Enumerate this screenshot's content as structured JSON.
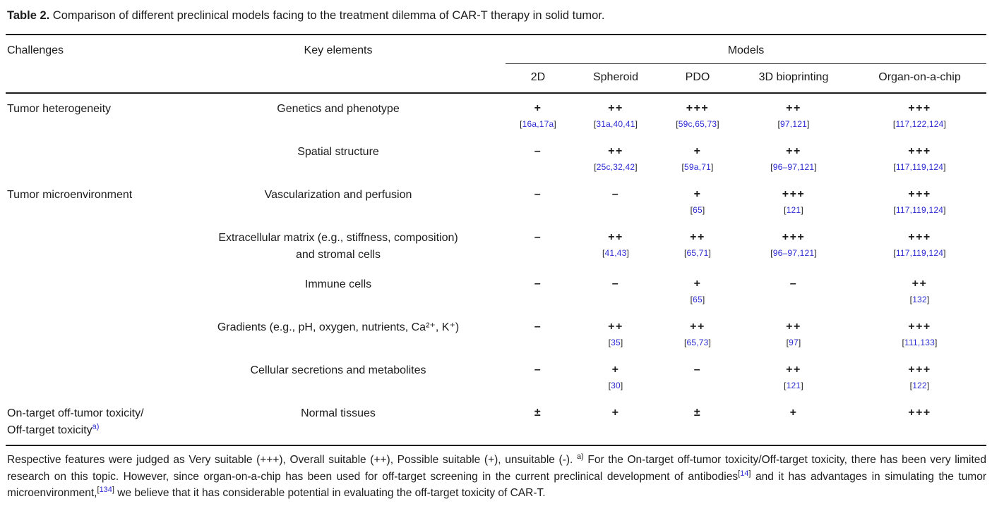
{
  "title": {
    "label": "Table 2.",
    "text": " Comparison of different preclinical models facing to the treatment dilemma of CAR-T therapy in solid tumor."
  },
  "colors": {
    "citation_blue": "#2b2bd2",
    "text_dark": "#1c1c1c"
  },
  "table": {
    "headers": {
      "challenges": "Challenges",
      "key_elements": "Key elements",
      "models": "Models",
      "model_columns": [
        "2D",
        "Spheroid",
        "PDO",
        "3D bioprinting",
        "Organ-on-a-chip"
      ]
    },
    "rows": [
      {
        "challenge": {
          "lines": [
            "Tumor heterogeneity"
          ]
        },
        "element": {
          "lines": [
            "Genetics and phenotype"
          ]
        },
        "cells": [
          {
            "symbol": "+",
            "cite": "[16a,17a]"
          },
          {
            "symbol": "++",
            "cite": "[31a,40,41]"
          },
          {
            "symbol": "+++",
            "cite": "[59c,65,73]"
          },
          {
            "symbol": "++",
            "cite": "[97,121]"
          },
          {
            "symbol": "+++",
            "cite": "[117,122,124]"
          }
        ]
      },
      {
        "challenge": {
          "lines": []
        },
        "element": {
          "lines": [
            "Spatial structure"
          ]
        },
        "cells": [
          {
            "symbol": "–"
          },
          {
            "symbol": "++",
            "cite": "[25c,32,42]"
          },
          {
            "symbol": "+",
            "cite": "[59a,71]"
          },
          {
            "symbol": "++",
            "cite": "[96–97,121]"
          },
          {
            "symbol": "+++",
            "cite": "[117,119,124]"
          }
        ]
      },
      {
        "challenge": {
          "lines": [
            "Tumor microenvironment"
          ]
        },
        "element": {
          "lines": [
            "Vascularization and perfusion"
          ]
        },
        "cells": [
          {
            "symbol": "–"
          },
          {
            "symbol": "–"
          },
          {
            "symbol": "+",
            "cite": "[65]"
          },
          {
            "symbol": "+++",
            "cite": "[121]"
          },
          {
            "symbol": "+++",
            "cite": "[117,119,124]"
          }
        ]
      },
      {
        "challenge": {
          "lines": []
        },
        "element": {
          "lines": [
            "Extracellular matrix (e.g., stiffness, composition)",
            "and stromal cells"
          ]
        },
        "cells": [
          {
            "symbol": "–"
          },
          {
            "symbol": "++",
            "cite": "[41,43]"
          },
          {
            "symbol": "++",
            "cite": "[65,71]"
          },
          {
            "symbol": "+++",
            "cite": "[96–97,121]"
          },
          {
            "symbol": "+++",
            "cite": "[117,119,124]"
          }
        ]
      },
      {
        "challenge": {
          "lines": []
        },
        "element": {
          "lines": [
            "Immune cells"
          ]
        },
        "cells": [
          {
            "symbol": "–"
          },
          {
            "symbol": "–"
          },
          {
            "symbol": "+",
            "cite": "[65]"
          },
          {
            "symbol": "–"
          },
          {
            "symbol": "++",
            "cite": "[132]"
          }
        ]
      },
      {
        "challenge": {
          "lines": []
        },
        "element": {
          "lines": [
            "Gradients (e.g., pH, oxygen, nutrients, Ca²⁺, K⁺)"
          ]
        },
        "cells": [
          {
            "symbol": "–"
          },
          {
            "symbol": "++",
            "cite": "[35]"
          },
          {
            "symbol": "++",
            "cite": "[65,73]"
          },
          {
            "symbol": "++",
            "cite": "[97]"
          },
          {
            "symbol": "+++",
            "cite": "[111,133]"
          }
        ]
      },
      {
        "challenge": {
          "lines": []
        },
        "element": {
          "lines": [
            "Cellular secretions and metabolites"
          ]
        },
        "cells": [
          {
            "symbol": "–"
          },
          {
            "symbol": "+",
            "cite": "[30]"
          },
          {
            "symbol": "–"
          },
          {
            "symbol": "++",
            "cite": "[121]"
          },
          {
            "symbol": "+++",
            "cite": "[122]"
          }
        ]
      },
      {
        "challenge": {
          "lines": [
            "On-target off-tumor toxicity/",
            "Off-target toxicity"
          ],
          "sup": "a)"
        },
        "element": {
          "lines": [
            "Normal tissues"
          ]
        },
        "cells": [
          {
            "symbol": "±"
          },
          {
            "symbol": "+"
          },
          {
            "symbol": "±"
          },
          {
            "symbol": "+"
          },
          {
            "symbol": "+++"
          }
        ]
      }
    ]
  },
  "footnote": {
    "part1": "Respective features were judged as Very suitable (+++), Overall suitable (++), Possible suitable (+), unsuitable (-).  ",
    "marker": "a)",
    "part2": " For the On-target off-tumor toxicity/Off-target toxicity, there has been very limited research on this topic. However, since organ-on-a-chip has been used for off-target screening in the current preclinical development of antibodies",
    "cite1": "[14]",
    "part3": " and it has advantages in simulating the tumor microenvironment,",
    "cite2": "[134]",
    "part4": " we believe that it has considerable potential in evaluating the off-target toxicity of CAR-T."
  }
}
